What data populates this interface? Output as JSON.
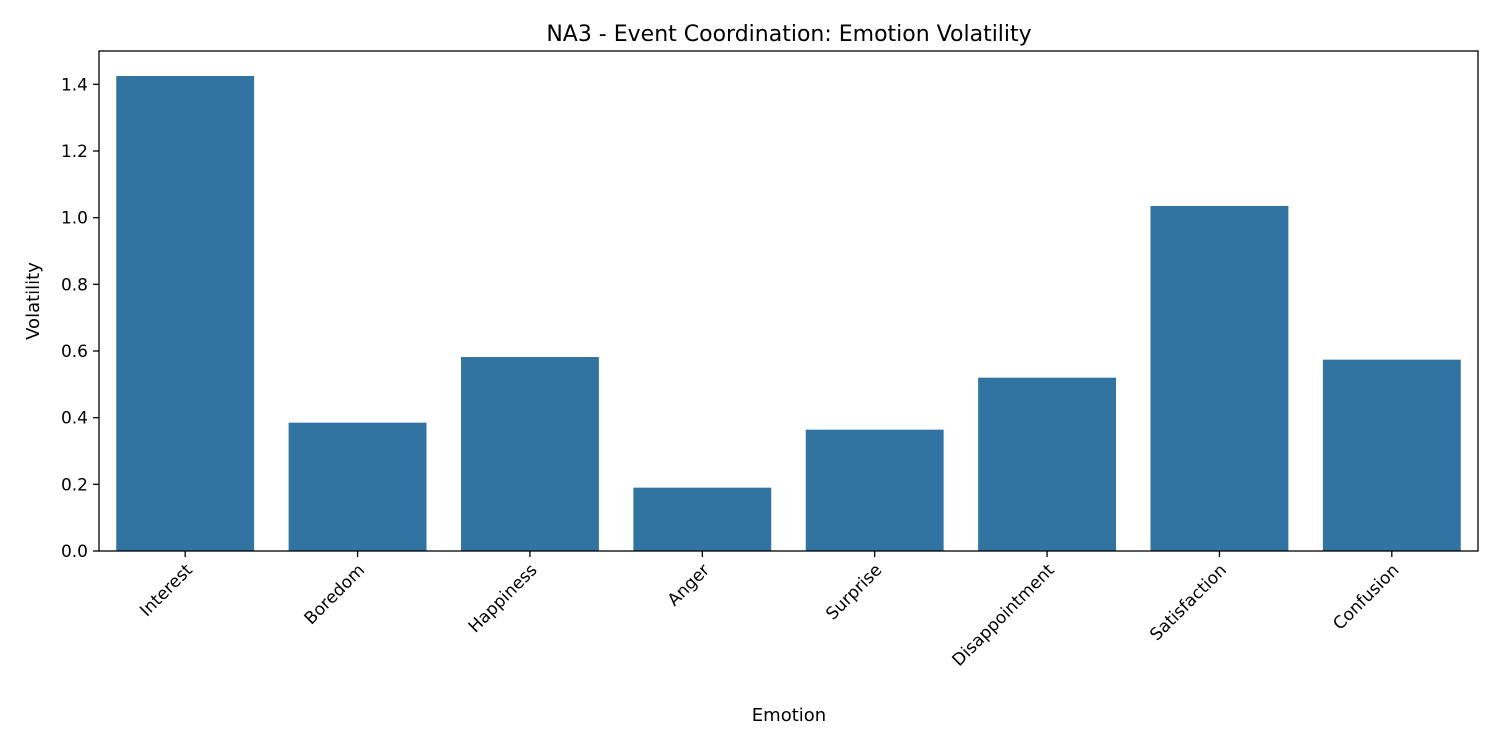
{
  "chart_data": {
    "type": "bar",
    "title": "NA3 - Event Coordination: Emotion Volatility",
    "xlabel": "Emotion",
    "ylabel": "Volatility",
    "categories": [
      "Interest",
      "Boredom",
      "Happiness",
      "Anger",
      "Surprise",
      "Disappointment",
      "Satisfaction",
      "Confusion"
    ],
    "values": [
      1.425,
      0.385,
      0.582,
      0.19,
      0.364,
      0.52,
      1.035,
      0.574
    ],
    "ylim": [
      0,
      1.5
    ],
    "yticks": [
      "0.0",
      "0.2",
      "0.4",
      "0.6",
      "0.8",
      "1.0",
      "1.2",
      "1.4"
    ],
    "bar_color": "#3274a1",
    "grid": false,
    "legend": "none"
  }
}
